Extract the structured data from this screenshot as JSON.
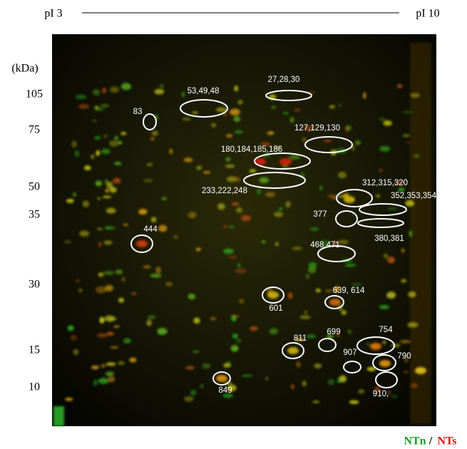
{
  "header": {
    "left": "pI 3",
    "right": "pI 10"
  },
  "axis": {
    "unit": "(kDa)",
    "markers": [
      105,
      75,
      50,
      35,
      30,
      15,
      10
    ]
  },
  "spots": [
    {
      "label": "53,49,48"
    },
    {
      "label": "27,28,30"
    },
    {
      "label": "83"
    },
    {
      "label": "127,129,130"
    },
    {
      "label": "180,184,185,186"
    },
    {
      "label": "233,222,248"
    },
    {
      "label": "312,315,320"
    },
    {
      "label": "352,353,354"
    },
    {
      "label": "377"
    },
    {
      "label": "380,381"
    },
    {
      "label": "444"
    },
    {
      "label": "468,471"
    },
    {
      "label": "639, 614"
    },
    {
      "label": "601"
    },
    {
      "label": "699"
    },
    {
      "label": "811"
    },
    {
      "label": "754"
    },
    {
      "label": "907"
    },
    {
      "label": "790"
    },
    {
      "label": "849"
    },
    {
      "label": "910,"
    }
  ],
  "legend": {
    "green": "NTn",
    "separator": "/",
    "red": "NTs"
  }
}
